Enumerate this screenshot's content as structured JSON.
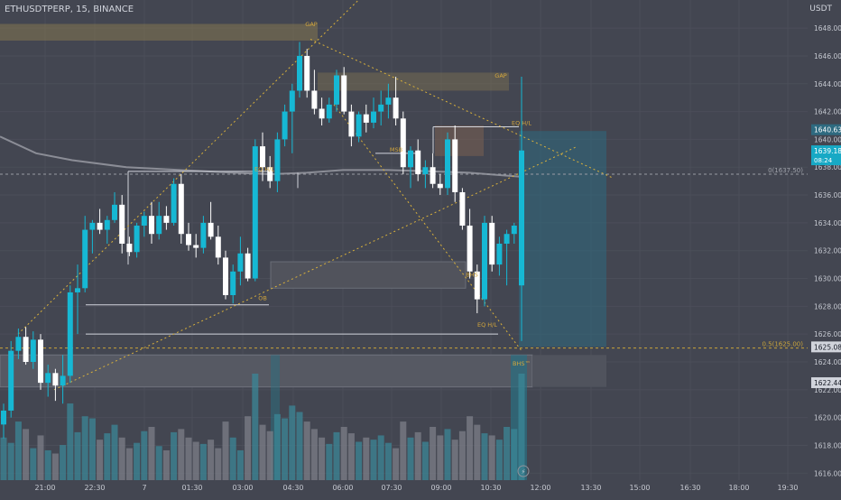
{
  "header": {
    "symbol": "ETHUSDTPERP, 15, BINANCE",
    "currency": "USDT"
  },
  "chart_data": {
    "type": "candlestick",
    "x_tick_labels": [
      "21:00",
      "22:30",
      "7",
      "01:30",
      "03:00",
      "04:30",
      "06:00",
      "07:30",
      "09:00",
      "10:30",
      "12:00",
      "13:30",
      "15:00",
      "16:30",
      "18:00",
      "19:30"
    ],
    "ylim": [
      1615.5,
      1649.5
    ],
    "y_tick_values": [
      1616,
      1618,
      1620,
      1622,
      1624,
      1626,
      1628,
      1630,
      1632,
      1634,
      1636,
      1638,
      1640,
      1642,
      1644,
      1646,
      1648
    ],
    "price_labels": {
      "last_price": "1639.18",
      "countdown": "08:24",
      "upper": "1640.63",
      "lower": "1625.08",
      "bottom": "1622.44"
    },
    "fib_levels": [
      {
        "label": "0(1637.50)",
        "price": 1637.5
      },
      {
        "label": "0.5(1625.00)",
        "price": 1625.0
      }
    ],
    "annotations": [
      {
        "text": "GAP",
        "price": 1648.0
      },
      {
        "text": "GAP",
        "price": 1644.3
      },
      {
        "text": "EQ H/L",
        "price": 1637.6
      },
      {
        "text": "EQ H/L",
        "price": 1640.9
      },
      {
        "text": "EQ H/L",
        "price": 1626.4
      },
      {
        "text": "MSB",
        "price": 1639.0
      },
      {
        "text": "BHS",
        "price": 1630.0
      },
      {
        "text": "OB",
        "price": 1628.3
      },
      {
        "text": "BHS™",
        "price": 1623.6
      }
    ],
    "candles": [
      {
        "o": 1619.5,
        "h": 1621.0,
        "l": 1618.5,
        "c": 1620.5
      },
      {
        "o": 1620.5,
        "h": 1625.5,
        "l": 1620.0,
        "c": 1624.8
      },
      {
        "o": 1624.8,
        "h": 1626.4,
        "l": 1624.2,
        "c": 1625.8
      },
      {
        "o": 1625.8,
        "h": 1626.5,
        "l": 1623.8,
        "c": 1624.0
      },
      {
        "o": 1624.0,
        "h": 1626.2,
        "l": 1623.5,
        "c": 1625.6
      },
      {
        "o": 1625.6,
        "h": 1626.0,
        "l": 1622.0,
        "c": 1622.5
      },
      {
        "o": 1622.5,
        "h": 1623.8,
        "l": 1621.5,
        "c": 1623.2
      },
      {
        "o": 1623.2,
        "h": 1623.5,
        "l": 1621.2,
        "c": 1622.3
      },
      {
        "o": 1622.3,
        "h": 1624.5,
        "l": 1621.0,
        "c": 1623.0
      },
      {
        "o": 1623.0,
        "h": 1629.5,
        "l": 1622.5,
        "c": 1629.0
      },
      {
        "o": 1629.0,
        "h": 1631.0,
        "l": 1626.0,
        "c": 1629.3
      },
      {
        "o": 1629.3,
        "h": 1634.5,
        "l": 1629.0,
        "c": 1633.5
      },
      {
        "o": 1633.5,
        "h": 1634.2,
        "l": 1631.8,
        "c": 1634.0
      },
      {
        "o": 1634.0,
        "h": 1635.0,
        "l": 1633.2,
        "c": 1633.5
      },
      {
        "o": 1633.5,
        "h": 1634.5,
        "l": 1632.5,
        "c": 1634.2
      },
      {
        "o": 1634.2,
        "h": 1636.2,
        "l": 1634.0,
        "c": 1635.3
      },
      {
        "o": 1635.3,
        "h": 1636.0,
        "l": 1631.8,
        "c": 1632.5
      },
      {
        "o": 1632.5,
        "h": 1633.0,
        "l": 1631.6,
        "c": 1631.9
      },
      {
        "o": 1631.9,
        "h": 1634.0,
        "l": 1631.5,
        "c": 1633.8
      },
      {
        "o": 1633.8,
        "h": 1634.8,
        "l": 1633.0,
        "c": 1634.5
      },
      {
        "o": 1634.5,
        "h": 1635.5,
        "l": 1632.5,
        "c": 1633.2
      },
      {
        "o": 1633.2,
        "h": 1635.5,
        "l": 1632.8,
        "c": 1634.5
      },
      {
        "o": 1634.5,
        "h": 1635.2,
        "l": 1633.5,
        "c": 1634.0
      },
      {
        "o": 1634.0,
        "h": 1637.2,
        "l": 1633.8,
        "c": 1636.8
      },
      {
        "o": 1636.8,
        "h": 1637.5,
        "l": 1632.5,
        "c": 1633.2
      },
      {
        "o": 1633.2,
        "h": 1634.0,
        "l": 1632.0,
        "c": 1632.4
      },
      {
        "o": 1632.4,
        "h": 1633.2,
        "l": 1631.5,
        "c": 1632.2
      },
      {
        "o": 1632.2,
        "h": 1634.5,
        "l": 1631.8,
        "c": 1634.0
      },
      {
        "o": 1634.0,
        "h": 1635.5,
        "l": 1632.8,
        "c": 1633.0
      },
      {
        "o": 1633.0,
        "h": 1633.8,
        "l": 1631.0,
        "c": 1631.5
      },
      {
        "o": 1631.5,
        "h": 1632.0,
        "l": 1628.5,
        "c": 1628.8
      },
      {
        "o": 1628.8,
        "h": 1631.0,
        "l": 1628.2,
        "c": 1630.5
      },
      {
        "o": 1630.5,
        "h": 1633.0,
        "l": 1629.5,
        "c": 1631.8
      },
      {
        "o": 1631.8,
        "h": 1632.2,
        "l": 1629.8,
        "c": 1630.0
      },
      {
        "o": 1630.0,
        "h": 1640.0,
        "l": 1629.8,
        "c": 1639.5
      },
      {
        "o": 1639.5,
        "h": 1640.5,
        "l": 1637.0,
        "c": 1638.0
      },
      {
        "o": 1638.0,
        "h": 1638.8,
        "l": 1636.5,
        "c": 1637.0
      },
      {
        "o": 1637.0,
        "h": 1640.5,
        "l": 1636.2,
        "c": 1640.0
      },
      {
        "o": 1640.0,
        "h": 1642.5,
        "l": 1639.5,
        "c": 1642.0
      },
      {
        "o": 1642.0,
        "h": 1644.0,
        "l": 1639.0,
        "c": 1643.5
      },
      {
        "o": 1643.5,
        "h": 1647.0,
        "l": 1643.0,
        "c": 1646.0
      },
      {
        "o": 1646.0,
        "h": 1646.5,
        "l": 1643.0,
        "c": 1643.5
      },
      {
        "o": 1643.5,
        "h": 1645.0,
        "l": 1641.8,
        "c": 1642.2
      },
      {
        "o": 1642.2,
        "h": 1643.0,
        "l": 1641.0,
        "c": 1641.5
      },
      {
        "o": 1641.5,
        "h": 1643.0,
        "l": 1641.2,
        "c": 1642.5
      },
      {
        "o": 1642.5,
        "h": 1645.0,
        "l": 1642.0,
        "c": 1644.6
      },
      {
        "o": 1644.6,
        "h": 1645.2,
        "l": 1641.8,
        "c": 1642.0
      },
      {
        "o": 1642.0,
        "h": 1642.5,
        "l": 1639.5,
        "c": 1640.2
      },
      {
        "o": 1640.2,
        "h": 1642.0,
        "l": 1639.8,
        "c": 1641.8
      },
      {
        "o": 1641.8,
        "h": 1642.5,
        "l": 1640.5,
        "c": 1641.2
      },
      {
        "o": 1641.2,
        "h": 1643.0,
        "l": 1640.8,
        "c": 1642.0
      },
      {
        "o": 1642.0,
        "h": 1643.5,
        "l": 1641.0,
        "c": 1642.5
      },
      {
        "o": 1642.5,
        "h": 1644.0,
        "l": 1641.5,
        "c": 1643.0
      },
      {
        "o": 1643.0,
        "h": 1644.5,
        "l": 1641.0,
        "c": 1641.5
      },
      {
        "o": 1641.5,
        "h": 1642.0,
        "l": 1637.5,
        "c": 1638.0
      },
      {
        "o": 1638.0,
        "h": 1639.5,
        "l": 1636.5,
        "c": 1639.2
      },
      {
        "o": 1639.2,
        "h": 1640.0,
        "l": 1637.0,
        "c": 1637.5
      },
      {
        "o": 1637.5,
        "h": 1638.5,
        "l": 1636.5,
        "c": 1638.0
      },
      {
        "o": 1638.0,
        "h": 1639.0,
        "l": 1636.5,
        "c": 1636.8
      },
      {
        "o": 1636.8,
        "h": 1637.5,
        "l": 1636.0,
        "c": 1636.5
      },
      {
        "o": 1636.5,
        "h": 1640.5,
        "l": 1636.0,
        "c": 1640.0
      },
      {
        "o": 1640.0,
        "h": 1641.0,
        "l": 1635.5,
        "c": 1636.2
      },
      {
        "o": 1636.2,
        "h": 1636.5,
        "l": 1633.5,
        "c": 1633.8
      },
      {
        "o": 1633.8,
        "h": 1635.0,
        "l": 1630.0,
        "c": 1630.5
      },
      {
        "o": 1630.5,
        "h": 1631.0,
        "l": 1627.5,
        "c": 1628.5
      },
      {
        "o": 1628.5,
        "h": 1634.5,
        "l": 1628.0,
        "c": 1634.0
      },
      {
        "o": 1634.0,
        "h": 1634.5,
        "l": 1630.5,
        "c": 1631.0
      },
      {
        "o": 1631.0,
        "h": 1633.0,
        "l": 1630.2,
        "c": 1632.5
      },
      {
        "o": 1632.5,
        "h": 1633.5,
        "l": 1629.5,
        "c": 1633.2
      },
      {
        "o": 1633.2,
        "h": 1634.0,
        "l": 1632.5,
        "c": 1633.8
      },
      {
        "o": 1629.5,
        "h": 1644.5,
        "l": 1625.5,
        "c": 1639.2
      }
    ],
    "volumes": [
      40,
      35,
      55,
      48,
      30,
      42,
      28,
      25,
      33,
      72,
      45,
      60,
      58,
      38,
      44,
      52,
      40,
      30,
      35,
      46,
      50,
      32,
      28,
      45,
      48,
      40,
      36,
      34,
      38,
      30,
      55,
      40,
      28,
      60,
      100,
      52,
      46,
      62,
      58,
      70,
      64,
      55,
      48,
      40,
      34,
      45,
      50,
      44,
      36,
      40,
      38,
      42,
      35,
      30,
      55,
      40,
      45,
      36,
      50,
      42,
      48,
      38,
      46,
      60,
      52,
      44,
      42,
      38,
      50,
      48,
      100
    ]
  }
}
